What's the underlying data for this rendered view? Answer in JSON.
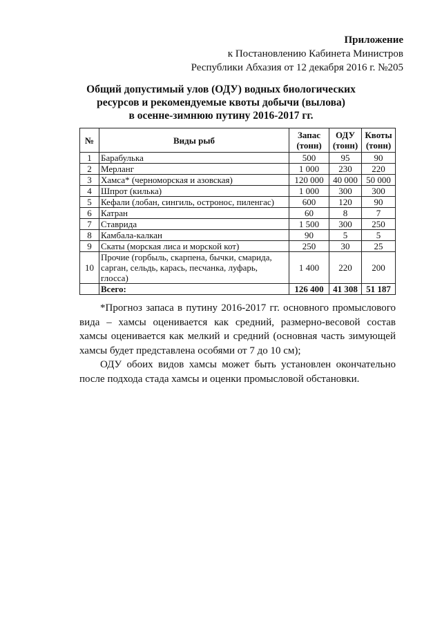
{
  "header": {
    "title": "Приложение",
    "line1": "к Постановлению Кабинета Министров",
    "line2": "Республики Абхазия от 12 декабря 2016 г. №205"
  },
  "doc_title": {
    "line1": "Общий допустимый улов (ОДУ) водных биологических",
    "line2": "ресурсов и рекомендуемые квоты добычи (вылова)",
    "line3": "в осенне-зимнюю путину 2016-2017 гг."
  },
  "table": {
    "columns": [
      "№",
      "Виды рыб",
      "Запас (тонн)",
      "ОДУ (тонн)",
      "Квоты (тонн)"
    ],
    "rows": [
      [
        "1",
        "Барабулька",
        "500",
        "95",
        "90"
      ],
      [
        "2",
        "Мерланг",
        "1 000",
        "230",
        "220"
      ],
      [
        "3",
        "Хамса* (черноморская и азовская)",
        "120 000",
        "40 000",
        "50 000"
      ],
      [
        "4",
        "Шпрот (килька)",
        "1 000",
        "300",
        "300"
      ],
      [
        "5",
        "Кефали (лобан, сингиль, остронос, пиленгас)",
        "600",
        "120",
        "90"
      ],
      [
        "6",
        "Катран",
        "60",
        "8",
        "7"
      ],
      [
        "7",
        "Ставрида",
        "1 500",
        "300",
        "250"
      ],
      [
        "8",
        "Камбала-калкан",
        "90",
        "5",
        "5"
      ],
      [
        "9",
        "Скаты (морская лиса и морской кот)",
        "250",
        "30",
        "25"
      ],
      [
        "10",
        "Прочие (горбыль, скарпена, бычки, смарида, сарган, сельдь, карась, песчанка, луфарь, глосса)",
        "1 400",
        "220",
        "200"
      ]
    ],
    "total": [
      "",
      "Всего:",
      "126 400",
      "41 308",
      "51 187"
    ]
  },
  "notes": [
    "*Прогноз запаса в путину 2016-2017 гг. основного промыслового вида – хамсы оценивается как средний, размерно-весовой состав хамсы оценивается как мелкий и средний (основная часть зимующей хамсы будет представлена особями от 7 до 10 см);",
    "ОДУ обоих видов хамсы может быть установлен окончательно после подхода стада хамсы и оценки промысловой обстановки."
  ]
}
